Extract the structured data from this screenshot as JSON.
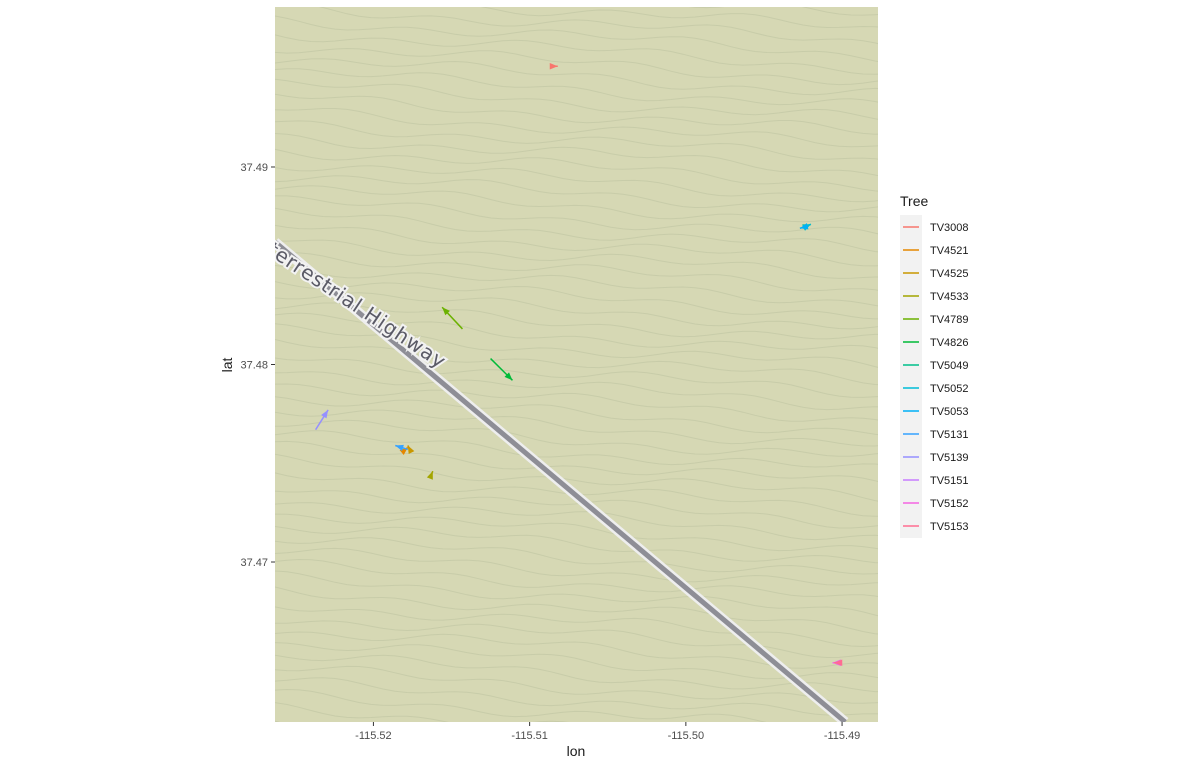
{
  "chart_data": {
    "type": "map",
    "xlabel": "lon",
    "ylabel": "lat",
    "xlim": [
      -115.5263,
      -115.4877
    ],
    "ylim": [
      37.4619,
      37.4981
    ],
    "x_ticks": [
      -115.52,
      -115.51,
      -115.5,
      -115.49
    ],
    "x_tick_labels": [
      "-115.52",
      "-115.51",
      "-115.50",
      "-115.49"
    ],
    "y_ticks": [
      37.47,
      37.48,
      37.49
    ],
    "y_tick_labels": [
      "37.47",
      "37.48",
      "37.49"
    ],
    "basemap": {
      "fill_color": "#d6d8b4",
      "contour_color": "#c4c9a6",
      "road": {
        "label": "terrestrial Highway",
        "color": "#8e8e96",
        "outline_color": "#eeeeee",
        "path": [
          [
            -115.5263,
            37.4862
          ],
          [
            -115.4898,
            37.4619
          ]
        ]
      }
    },
    "legend": {
      "title": "Tree",
      "position": "right",
      "entries": [
        {
          "name": "TV3008",
          "color": "#F8766D"
        },
        {
          "name": "TV4521",
          "color": "#E58700"
        },
        {
          "name": "TV4525",
          "color": "#C99800"
        },
        {
          "name": "TV4533",
          "color": "#A3A500"
        },
        {
          "name": "TV4789",
          "color": "#6BB100"
        },
        {
          "name": "TV4826",
          "color": "#00BA38"
        },
        {
          "name": "TV5049",
          "color": "#00C08B"
        },
        {
          "name": "TV5052",
          "color": "#00BCD8"
        },
        {
          "name": "TV5053",
          "color": "#00B0F6"
        },
        {
          "name": "TV5131",
          "color": "#35A2FF"
        },
        {
          "name": "TV5139",
          "color": "#9590FF"
        },
        {
          "name": "TV5151",
          "color": "#C77CFF"
        },
        {
          "name": "TV5152",
          "color": "#F564E3"
        },
        {
          "name": "TV5153",
          "color": "#FF6C91"
        }
      ]
    },
    "series": [
      {
        "name": "TV3008",
        "color": "#F8766D",
        "x": [
          -115.5086,
          -115.5082
        ],
        "y": [
          37.4951,
          37.4951
        ]
      },
      {
        "name": "TV4521",
        "color": "#E58700",
        "x": [
          -115.5181,
          -115.5178
        ],
        "y": [
          37.4756,
          37.4758
        ]
      },
      {
        "name": "TV4525",
        "color": "#C99800",
        "x": [
          -115.5176,
          -115.5178
        ],
        "y": [
          37.4756,
          37.4759
        ]
      },
      {
        "name": "TV4533",
        "color": "#A3A500",
        "x": [
          -115.5163,
          -115.5162
        ],
        "y": [
          37.4744,
          37.4746
        ]
      },
      {
        "name": "TV4789",
        "color": "#6BB100",
        "x": [
          -115.5143,
          -115.5156
        ],
        "y": [
          37.4818,
          37.4829
        ]
      },
      {
        "name": "TV4826",
        "color": "#00BA38",
        "x": [
          -115.5125,
          -115.5111
        ],
        "y": [
          37.4803,
          37.4792
        ]
      },
      {
        "name": "TV5049",
        "color": "#00C08B",
        "x": [
          -115.4923,
          -115.492
        ],
        "y": [
          37.487,
          37.4871
        ]
      },
      {
        "name": "TV5052",
        "color": "#00BCD8",
        "x": [
          -115.4925,
          -115.492
        ],
        "y": [
          37.4869,
          37.4871
        ]
      },
      {
        "name": "TV5053",
        "color": "#00B0F6",
        "x": [
          -115.4922,
          -115.4927
        ],
        "y": [
          37.487,
          37.4869
        ]
      },
      {
        "name": "TV5131",
        "color": "#35A2FF",
        "x": [
          -115.5178,
          -115.5186
        ],
        "y": [
          37.4757,
          37.4759
        ]
      },
      {
        "name": "TV5139",
        "color": "#9590FF",
        "x": [
          -115.5237,
          -115.5229
        ],
        "y": [
          37.4767,
          37.4777
        ]
      },
      {
        "name": "TV5151",
        "color": "#C77CFF",
        "x": [
          -115.4903,
          -115.4906
        ],
        "y": [
          37.4649,
          37.4649
        ]
      },
      {
        "name": "TV5152",
        "color": "#F564E3",
        "x": [
          -115.4903,
          -115.4906
        ],
        "y": [
          37.4649,
          37.4649
        ]
      },
      {
        "name": "TV5153",
        "color": "#FF6C91",
        "x": [
          -115.4902,
          -115.4905
        ],
        "y": [
          37.4649,
          37.4649
        ]
      }
    ]
  }
}
